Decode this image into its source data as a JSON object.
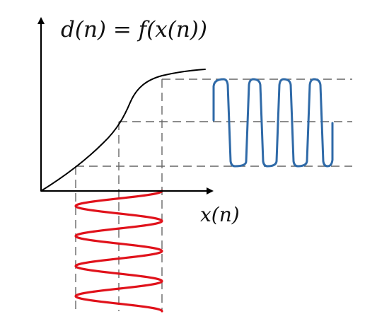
{
  "labels": {
    "mapping": "d(n) = f(x(n))",
    "x_axis": "x(n)"
  },
  "colors": {
    "axis": "#000000",
    "transfer_curve": "#000000",
    "guide_lines": "#666666",
    "input_signal": "#e0121b",
    "output_signal": "#2f6aa8"
  }
}
